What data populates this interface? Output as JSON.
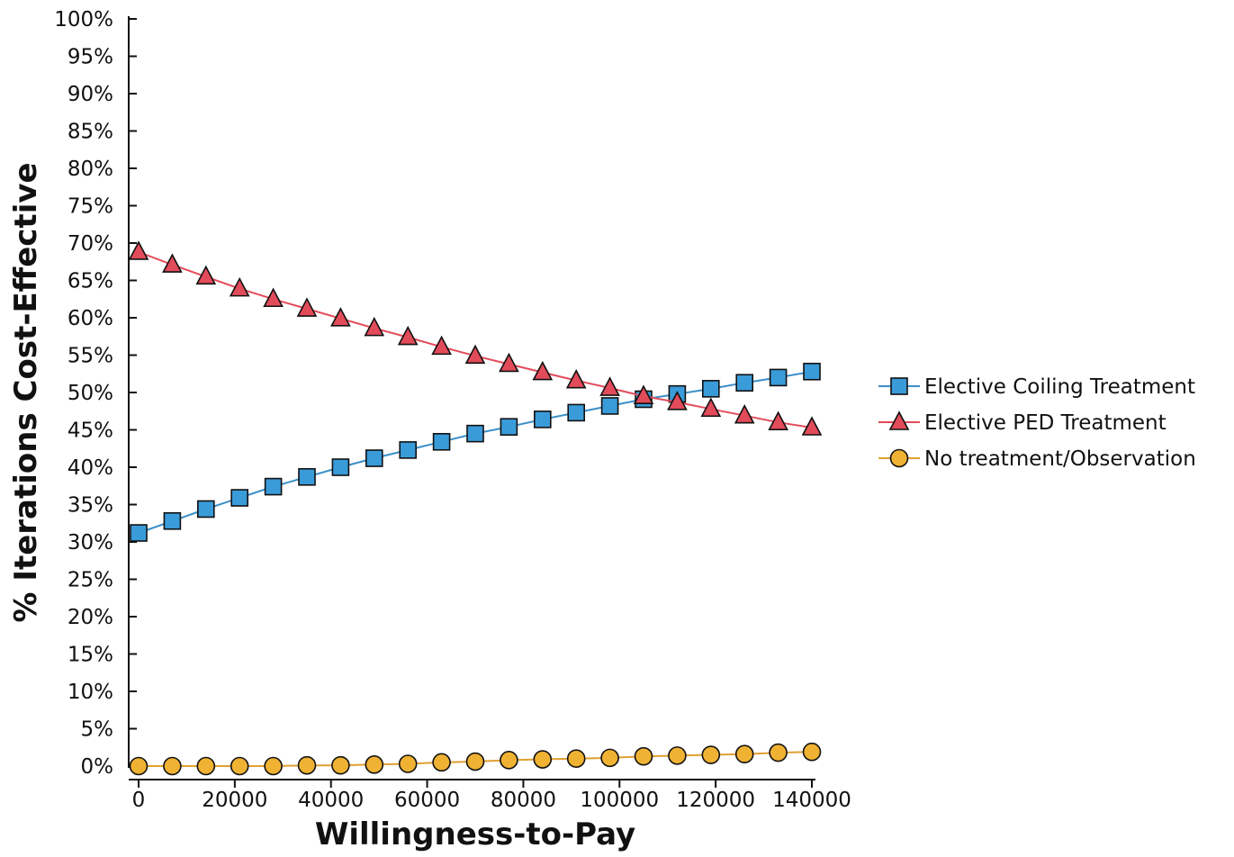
{
  "chart_data": {
    "type": "line",
    "title": "",
    "xlabel": "Willingness-to-Pay",
    "ylabel": "% Iterations Cost-Effective",
    "xlim": [
      0,
      140000
    ],
    "ylim": [
      0,
      100
    ],
    "x_ticks": [
      "0",
      "20000",
      "40000",
      "60000",
      "80000",
      "100000",
      "120000",
      "140000"
    ],
    "y_ticks": [
      "0%",
      "5%",
      "10%",
      "15%",
      "20%",
      "25%",
      "30%",
      "35%",
      "40%",
      "45%",
      "50%",
      "55%",
      "60%",
      "65%",
      "70%",
      "75%",
      "80%",
      "85%",
      "90%",
      "95%",
      "100%"
    ],
    "grid": false,
    "legend_position": "right",
    "x": [
      0,
      7000,
      14000,
      21000,
      28000,
      35000,
      42000,
      49000,
      56000,
      63000,
      70000,
      77000,
      84000,
      91000,
      98000,
      105000,
      112000,
      119000,
      126000,
      133000,
      140000
    ],
    "series": [
      {
        "name": "Elective Coiling Treatment",
        "marker": "square",
        "color": "#3a9bd9",
        "line_color": "#3a8fc8",
        "values": [
          31.2,
          32.8,
          34.4,
          35.9,
          37.4,
          38.7,
          40.0,
          41.2,
          42.3,
          43.4,
          44.5,
          45.4,
          46.4,
          47.3,
          48.2,
          49.1,
          49.8,
          50.5,
          51.3,
          52.0,
          52.8
        ]
      },
      {
        "name": "Elective PED Treatment",
        "marker": "triangle",
        "color": "#e24b5a",
        "line_color": "#e24b5a",
        "values": [
          68.8,
          67.1,
          65.5,
          63.9,
          62.5,
          61.2,
          59.9,
          58.6,
          57.4,
          56.1,
          54.9,
          53.8,
          52.7,
          51.6,
          50.6,
          49.5,
          48.7,
          47.8,
          46.9,
          46.0,
          45.3
        ]
      },
      {
        "name": "No treatment/Observation",
        "marker": "circle",
        "color": "#f0b233",
        "line_color": "#e0a030",
        "values": [
          0.0,
          0.0,
          0.0,
          0.0,
          0.0,
          0.1,
          0.1,
          0.2,
          0.3,
          0.5,
          0.6,
          0.8,
          0.9,
          1.0,
          1.1,
          1.3,
          1.4,
          1.5,
          1.6,
          1.8,
          1.9
        ]
      }
    ]
  }
}
